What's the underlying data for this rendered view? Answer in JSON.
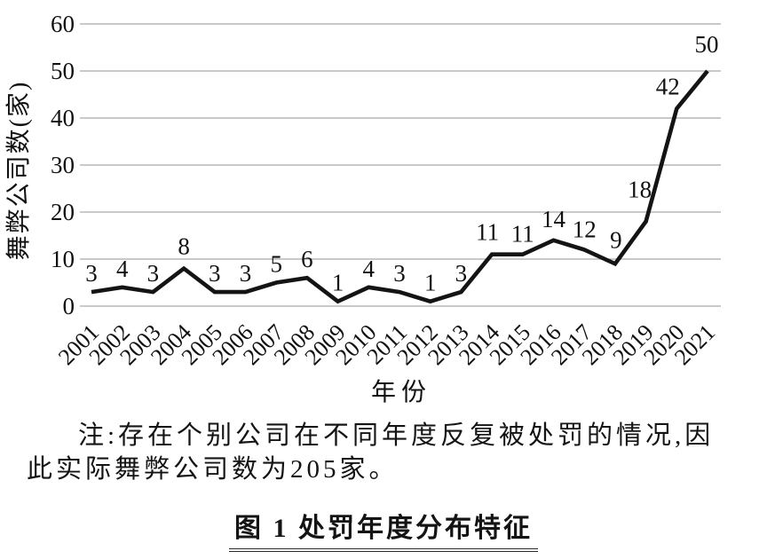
{
  "figure": {
    "note_line1": "注:存在个别公司在不同年度反复被处罚的情况,因",
    "note_line2": "此实际舞弊公司数为205家。",
    "caption": "图 1 处罚年度分布特征"
  },
  "chart_data": {
    "type": "line",
    "title": "",
    "xlabel": "年份",
    "ylabel": "舞弊公司数(家)",
    "categories": [
      2001,
      2002,
      2003,
      2004,
      2005,
      2006,
      2007,
      2008,
      2009,
      2010,
      2011,
      2012,
      2013,
      2014,
      2015,
      2016,
      2017,
      2018,
      2019,
      2020,
      2021
    ],
    "values": [
      3,
      4,
      3,
      8,
      3,
      3,
      5,
      6,
      1,
      4,
      3,
      1,
      3,
      11,
      11,
      14,
      12,
      9,
      18,
      42,
      50
    ],
    "ylim": [
      0,
      60
    ],
    "yticks": [
      0,
      10,
      20,
      30,
      40,
      50,
      60
    ],
    "grid": true,
    "legend_position": "none",
    "point_labels": true,
    "line_color": "#141414",
    "grid_color": "#a9a9a9",
    "label_color": "#111111"
  }
}
